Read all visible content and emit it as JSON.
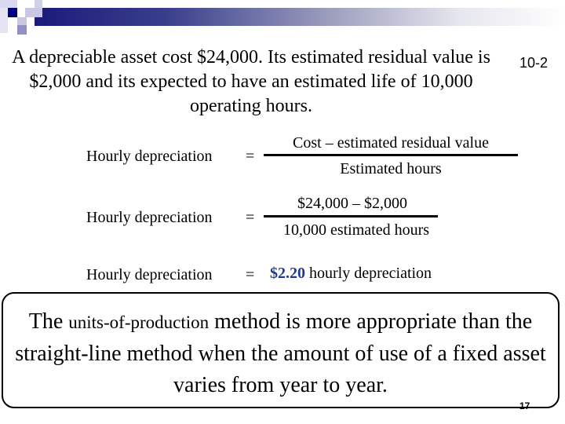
{
  "slide": {
    "intro": "A depreciable asset cost $24,000.  Its estimated residual value is $2,000 and its expected to have an estimated life of 10,000 operating hours.",
    "chapter_code": "10-2",
    "formula": {
      "label": "Hourly depreciation",
      "equals": "=",
      "numerator": "Cost – estimated residual value",
      "denominator": "Estimated hours"
    },
    "substitution": {
      "label": "Hourly depreciation",
      "equals": "=",
      "numerator": "$24,000 – $2,000",
      "denominator": "10,000 estimated hours"
    },
    "result": {
      "label": "Hourly depreciation",
      "equals": "=",
      "value": "$2.20",
      "suffix": "hourly depreciation"
    },
    "callout": {
      "part1": "The ",
      "part2": "units-of-production",
      "part3": " method is more appropriate than the straight-line method when the amount of use of a fixed asset varies from year to year."
    },
    "page_number": "17",
    "colors": {
      "accent": "#1f3a93",
      "header_bar": "#1a1a7a"
    }
  }
}
